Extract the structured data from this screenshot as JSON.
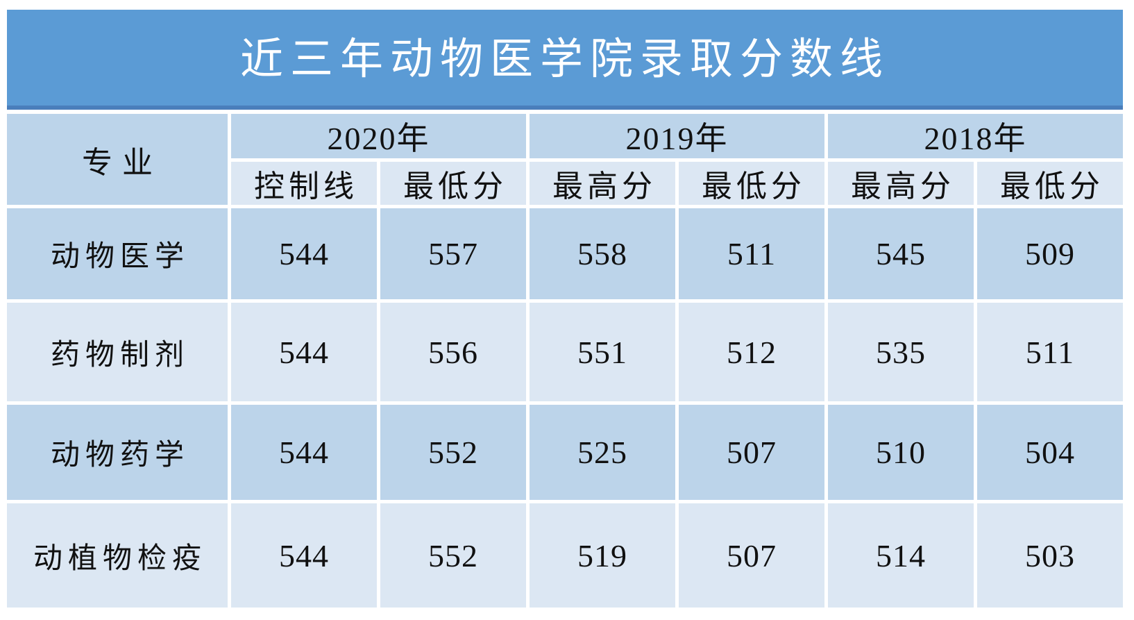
{
  "title": "近三年动物医学院录取分数线",
  "colors": {
    "banner_blue": "#5b9bd5",
    "banner_border": "#4a7ebb",
    "row_dark_blue": "#bcd4ea",
    "row_light_blue": "#dce7f3",
    "text": "#111111",
    "title_text": "#ffffff",
    "background": "#ffffff"
  },
  "table": {
    "corner_header": "专业",
    "year_groups": [
      {
        "year": "2020年",
        "sub": [
          "控制线",
          "最低分"
        ]
      },
      {
        "year": "2019年",
        "sub": [
          "最高分",
          "最低分"
        ]
      },
      {
        "year": "2018年",
        "sub": [
          "最高分",
          "最低分"
        ]
      }
    ],
    "rows": [
      {
        "major": "动物医学",
        "values": [
          "544",
          "557",
          "558",
          "511",
          "545",
          "509"
        ]
      },
      {
        "major": "药物制剂",
        "values": [
          "544",
          "556",
          "551",
          "512",
          "535",
          "511"
        ]
      },
      {
        "major": "动物药学",
        "values": [
          "544",
          "552",
          "525",
          "507",
          "510",
          "504"
        ]
      },
      {
        "major": "动植物检疫",
        "values": [
          "544",
          "552",
          "519",
          "507",
          "514",
          "503"
        ]
      }
    ]
  },
  "chart_data": {
    "type": "table",
    "title": "近三年动物医学院录取分数线",
    "column_groups": [
      "2020年",
      "2019年",
      "2018年"
    ],
    "columns": [
      "专业",
      "2020年 控制线",
      "2020年 最低分",
      "2019年 最高分",
      "2019年 最低分",
      "2018年 最高分",
      "2018年 最低分"
    ],
    "rows": [
      [
        "动物医学",
        544,
        557,
        558,
        511,
        545,
        509
      ],
      [
        "药物制剂",
        544,
        556,
        551,
        512,
        535,
        511
      ],
      [
        "动物药学",
        544,
        552,
        525,
        507,
        510,
        504
      ],
      [
        "动植物检疫",
        544,
        552,
        519,
        507,
        514,
        503
      ]
    ]
  }
}
